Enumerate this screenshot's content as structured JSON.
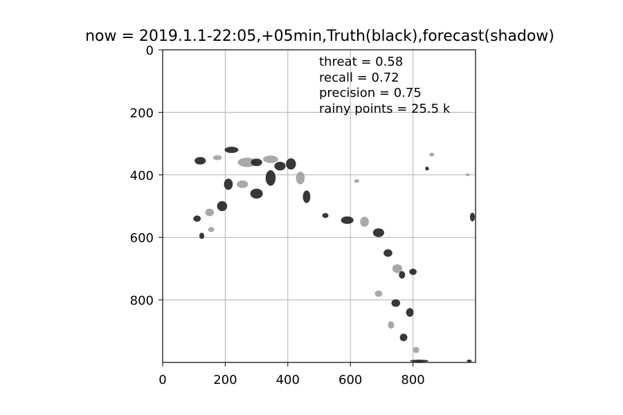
{
  "chart_data": {
    "type": "heatmap",
    "title": "now = 2019.1.1-22:05,+05min,Truth(black),forecast(shadow)",
    "xlabel": "",
    "ylabel": "",
    "xlim": [
      0,
      1000
    ],
    "ylim": [
      1000,
      0
    ],
    "y_inverted": true,
    "grid": true,
    "x_ticks": [
      0,
      200,
      400,
      600,
      800
    ],
    "y_ticks": [
      0,
      200,
      400,
      600,
      800
    ],
    "stats": [
      {
        "label": "threat",
        "text": "threat = 0.58",
        "value": 0.58
      },
      {
        "label": "recall",
        "text": "recall = 0.72",
        "value": 0.72
      },
      {
        "label": "precision",
        "text": "precision = 0.75",
        "value": 0.75
      },
      {
        "label": "rainy points",
        "text": "rainy points = 25.5 k",
        "value": 25.5,
        "unit": "k"
      }
    ],
    "truth_color": "#222222",
    "forecast_color": "#8c8c8c",
    "rain_regions": [
      {
        "x": 120,
        "y": 355,
        "rx": 18,
        "ry": 12,
        "kind": "truth"
      },
      {
        "x": 175,
        "y": 345,
        "rx": 14,
        "ry": 8,
        "kind": "forecast"
      },
      {
        "x": 220,
        "y": 320,
        "rx": 22,
        "ry": 10,
        "kind": "truth"
      },
      {
        "x": 270,
        "y": 360,
        "rx": 30,
        "ry": 15,
        "kind": "forecast"
      },
      {
        "x": 300,
        "y": 360,
        "rx": 18,
        "ry": 12,
        "kind": "truth"
      },
      {
        "x": 345,
        "y": 350,
        "rx": 24,
        "ry": 12,
        "kind": "forecast"
      },
      {
        "x": 375,
        "y": 372,
        "rx": 18,
        "ry": 14,
        "kind": "truth"
      },
      {
        "x": 410,
        "y": 365,
        "rx": 16,
        "ry": 18,
        "kind": "truth"
      },
      {
        "x": 440,
        "y": 410,
        "rx": 14,
        "ry": 20,
        "kind": "forecast"
      },
      {
        "x": 460,
        "y": 470,
        "rx": 12,
        "ry": 20,
        "kind": "truth"
      },
      {
        "x": 345,
        "y": 410,
        "rx": 16,
        "ry": 25,
        "kind": "truth"
      },
      {
        "x": 300,
        "y": 460,
        "rx": 20,
        "ry": 16,
        "kind": "truth"
      },
      {
        "x": 255,
        "y": 430,
        "rx": 18,
        "ry": 12,
        "kind": "forecast"
      },
      {
        "x": 210,
        "y": 430,
        "rx": 14,
        "ry": 18,
        "kind": "truth"
      },
      {
        "x": 190,
        "y": 500,
        "rx": 16,
        "ry": 16,
        "kind": "truth"
      },
      {
        "x": 150,
        "y": 520,
        "rx": 14,
        "ry": 12,
        "kind": "forecast"
      },
      {
        "x": 110,
        "y": 540,
        "rx": 12,
        "ry": 10,
        "kind": "truth"
      },
      {
        "x": 125,
        "y": 595,
        "rx": 8,
        "ry": 10,
        "kind": "truth"
      },
      {
        "x": 155,
        "y": 575,
        "rx": 10,
        "ry": 8,
        "kind": "forecast"
      },
      {
        "x": 590,
        "y": 545,
        "rx": 20,
        "ry": 12,
        "kind": "truth"
      },
      {
        "x": 645,
        "y": 550,
        "rx": 14,
        "ry": 16,
        "kind": "forecast"
      },
      {
        "x": 690,
        "y": 585,
        "rx": 18,
        "ry": 14,
        "kind": "truth"
      },
      {
        "x": 720,
        "y": 650,
        "rx": 14,
        "ry": 12,
        "kind": "truth"
      },
      {
        "x": 750,
        "y": 700,
        "rx": 16,
        "ry": 14,
        "kind": "forecast"
      },
      {
        "x": 765,
        "y": 720,
        "rx": 10,
        "ry": 12,
        "kind": "truth"
      },
      {
        "x": 800,
        "y": 710,
        "rx": 12,
        "ry": 10,
        "kind": "truth"
      },
      {
        "x": 690,
        "y": 780,
        "rx": 12,
        "ry": 10,
        "kind": "forecast"
      },
      {
        "x": 745,
        "y": 810,
        "rx": 14,
        "ry": 12,
        "kind": "truth"
      },
      {
        "x": 790,
        "y": 840,
        "rx": 12,
        "ry": 14,
        "kind": "truth"
      },
      {
        "x": 730,
        "y": 880,
        "rx": 10,
        "ry": 12,
        "kind": "forecast"
      },
      {
        "x": 770,
        "y": 920,
        "rx": 12,
        "ry": 12,
        "kind": "truth"
      },
      {
        "x": 810,
        "y": 960,
        "rx": 10,
        "ry": 10,
        "kind": "forecast"
      },
      {
        "x": 820,
        "y": 995,
        "rx": 30,
        "ry": 4,
        "kind": "truth"
      },
      {
        "x": 980,
        "y": 995,
        "rx": 8,
        "ry": 4,
        "kind": "truth"
      },
      {
        "x": 845,
        "y": 380,
        "rx": 6,
        "ry": 6,
        "kind": "truth"
      },
      {
        "x": 860,
        "y": 335,
        "rx": 8,
        "ry": 6,
        "kind": "forecast"
      },
      {
        "x": 990,
        "y": 535,
        "rx": 8,
        "ry": 14,
        "kind": "truth"
      },
      {
        "x": 975,
        "y": 400,
        "rx": 6,
        "ry": 4,
        "kind": "forecast"
      },
      {
        "x": 620,
        "y": 420,
        "rx": 8,
        "ry": 6,
        "kind": "forecast"
      },
      {
        "x": 520,
        "y": 530,
        "rx": 10,
        "ry": 8,
        "kind": "truth"
      }
    ]
  }
}
